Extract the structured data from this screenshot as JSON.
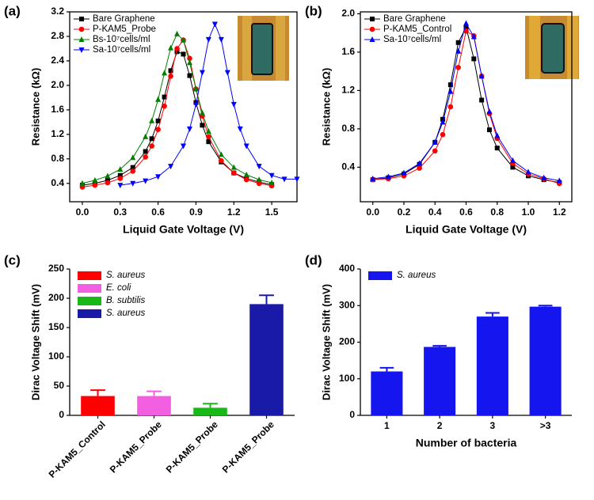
{
  "chart_data": [
    {
      "type": "line",
      "panel_label": "(a)",
      "x_label": "Liquid Gate Voltage (V)",
      "y_label": "Resistance (kΩ)",
      "xlim": [
        -0.1,
        1.7
      ],
      "xticks": [
        {
          "value": 0,
          "label": "0.0"
        },
        0.3,
        0.6,
        0.9,
        1.2,
        1.5
      ],
      "ylim": [
        0.1,
        3.2
      ],
      "yticks": [
        0.4,
        0.8,
        1.2,
        1.6,
        {
          "value": 2,
          "label": "2.0"
        },
        2.4,
        2.8,
        3.2
      ],
      "series": [
        {
          "name": "Bare Graphene",
          "color": "#000000",
          "marker": "square",
          "x": [
            0,
            0.1,
            0.2,
            0.3,
            0.4,
            0.5,
            0.55,
            0.6,
            0.65,
            0.7,
            0.75,
            0.8,
            0.85,
            0.9,
            0.95,
            1.0,
            1.1,
            1.2,
            1.3,
            1.4,
            1.5
          ],
          "values": [
            0.37,
            0.4,
            0.45,
            0.53,
            0.66,
            0.92,
            1.13,
            1.42,
            1.81,
            2.24,
            2.55,
            2.51,
            2.16,
            1.72,
            1.35,
            1.08,
            0.75,
            0.57,
            0.48,
            0.42,
            0.38
          ]
        },
        {
          "name": "P-KAM5_Probe",
          "color": "#ff0000",
          "marker": "circle",
          "x": [
            0,
            0.1,
            0.2,
            0.3,
            0.4,
            0.5,
            0.55,
            0.6,
            0.65,
            0.7,
            0.75,
            0.8,
            0.85,
            0.9,
            0.95,
            1.0,
            1.1,
            1.2,
            1.3,
            1.4,
            1.5
          ],
          "values": [
            0.34,
            0.37,
            0.41,
            0.48,
            0.6,
            0.83,
            1.01,
            1.28,
            1.66,
            2.15,
            2.6,
            2.74,
            2.44,
            1.94,
            1.5,
            1.16,
            0.77,
            0.57,
            0.46,
            0.4,
            0.36
          ]
        },
        {
          "name": "Bs-10⁷cells/ml",
          "color": "#008000",
          "marker": "triangle-up",
          "x": [
            0,
            0.1,
            0.2,
            0.3,
            0.4,
            0.5,
            0.55,
            0.6,
            0.65,
            0.7,
            0.75,
            0.8,
            0.85,
            0.9,
            0.95,
            1.0,
            1.1,
            1.2,
            1.3,
            1.4,
            1.5
          ],
          "values": [
            0.4,
            0.45,
            0.52,
            0.63,
            0.82,
            1.16,
            1.42,
            1.77,
            2.2,
            2.61,
            2.84,
            2.74,
            2.37,
            1.94,
            1.55,
            1.25,
            0.87,
            0.66,
            0.54,
            0.46,
            0.41
          ]
        },
        {
          "name": "Sa-10⁷cells/ml",
          "color": "#0000ff",
          "marker": "triangle-down",
          "x": [
            0.3,
            0.4,
            0.5,
            0.6,
            0.7,
            0.8,
            0.85,
            0.9,
            0.95,
            1.0,
            1.05,
            1.1,
            1.15,
            1.2,
            1.25,
            1.3,
            1.4,
            1.5,
            1.6,
            1.7
          ],
          "values": [
            0.37,
            0.4,
            0.44,
            0.51,
            0.68,
            1.01,
            1.29,
            1.69,
            2.21,
            2.75,
            3.0,
            2.75,
            2.21,
            1.69,
            1.29,
            1.01,
            0.68,
            0.53,
            0.47,
            0.47
          ]
        }
      ]
    },
    {
      "type": "line",
      "panel_label": "(b)",
      "x_label": "Liquid Gate Voltage (V)",
      "y_label": "Resistance (kΩ)",
      "xlim": [
        -0.08,
        1.28
      ],
      "xticks": [
        {
          "value": 0,
          "label": "0.0"
        },
        0.2,
        0.4,
        0.6,
        0.8,
        {
          "value": 1,
          "label": "1.0"
        },
        1.2
      ],
      "ylim": [
        0.04,
        2.02
      ],
      "yticks": [
        0.4,
        0.8,
        1.2,
        1.6,
        {
          "value": 2,
          "label": "2.0"
        }
      ],
      "series": [
        {
          "name": "Bare Graphene",
          "color": "#000000",
          "marker": "square",
          "x": [
            0,
            0.1,
            0.2,
            0.3,
            0.4,
            0.45,
            0.5,
            0.55,
            0.6,
            0.65,
            0.7,
            0.75,
            0.8,
            0.9,
            1.0,
            1.1,
            1.2
          ],
          "values": [
            0.27,
            0.29,
            0.33,
            0.43,
            0.66,
            0.9,
            1.26,
            1.7,
            1.86,
            1.53,
            1.1,
            0.79,
            0.6,
            0.4,
            0.31,
            0.27,
            0.24
          ]
        },
        {
          "name": "P-KAM5_Control",
          "color": "#ff0000",
          "marker": "circle",
          "x": [
            0,
            0.1,
            0.2,
            0.3,
            0.4,
            0.45,
            0.5,
            0.55,
            0.6,
            0.65,
            0.7,
            0.75,
            0.8,
            0.9,
            1.0,
            1.1,
            1.2
          ],
          "values": [
            0.27,
            0.28,
            0.31,
            0.39,
            0.57,
            0.74,
            1.03,
            1.44,
            1.82,
            1.77,
            1.35,
            0.96,
            0.7,
            0.44,
            0.33,
            0.28,
            0.23
          ]
        },
        {
          "name": "Sa-10⁷cells/ml",
          "color": "#0000ff",
          "marker": "triangle-up",
          "x": [
            0,
            0.1,
            0.2,
            0.3,
            0.4,
            0.45,
            0.5,
            0.55,
            0.6,
            0.65,
            0.7,
            0.75,
            0.8,
            0.9,
            1.0,
            1.1,
            1.2
          ],
          "values": [
            0.28,
            0.3,
            0.34,
            0.44,
            0.66,
            0.87,
            1.19,
            1.61,
            1.9,
            1.76,
            1.35,
            0.98,
            0.73,
            0.47,
            0.35,
            0.29,
            0.26
          ]
        }
      ]
    },
    {
      "type": "bar",
      "panel_label": "(c)",
      "y_label": "Dirac Voltage Shift (mV)",
      "categories": [
        "P-KAM5_Control",
        "P-KAM5_Probe",
        "P-KAM5_Probe",
        "P-KAM5_Probe"
      ],
      "values": [
        33,
        33,
        13,
        190
      ],
      "errors": [
        10,
        8,
        7,
        15
      ],
      "colors": [
        "#ff0000",
        "#f25fe0",
        "#18b818",
        "#1a1aa8"
      ],
      "legend": [
        "S. aureus",
        "E. coli",
        "B. subtilis",
        "S. aureus"
      ],
      "ylim": [
        0,
        250
      ],
      "yticks": [
        0,
        50,
        100,
        150,
        200,
        250
      ]
    },
    {
      "type": "bar",
      "panel_label": "(d)",
      "y_label": "Dirac Voltage Shift (mV)",
      "x_label": "Number of bacteria",
      "categories": [
        "1",
        "2",
        "3",
        ">3"
      ],
      "values": [
        120,
        187,
        270,
        297
      ],
      "errors": [
        10,
        3,
        10,
        3
      ],
      "colors": [
        "#1515f0",
        "#1515f0",
        "#1515f0",
        "#1515f0"
      ],
      "legend": [
        "S. aureus"
      ],
      "ylim": [
        0,
        400
      ],
      "yticks": [
        0,
        100,
        200,
        300,
        400
      ]
    }
  ]
}
